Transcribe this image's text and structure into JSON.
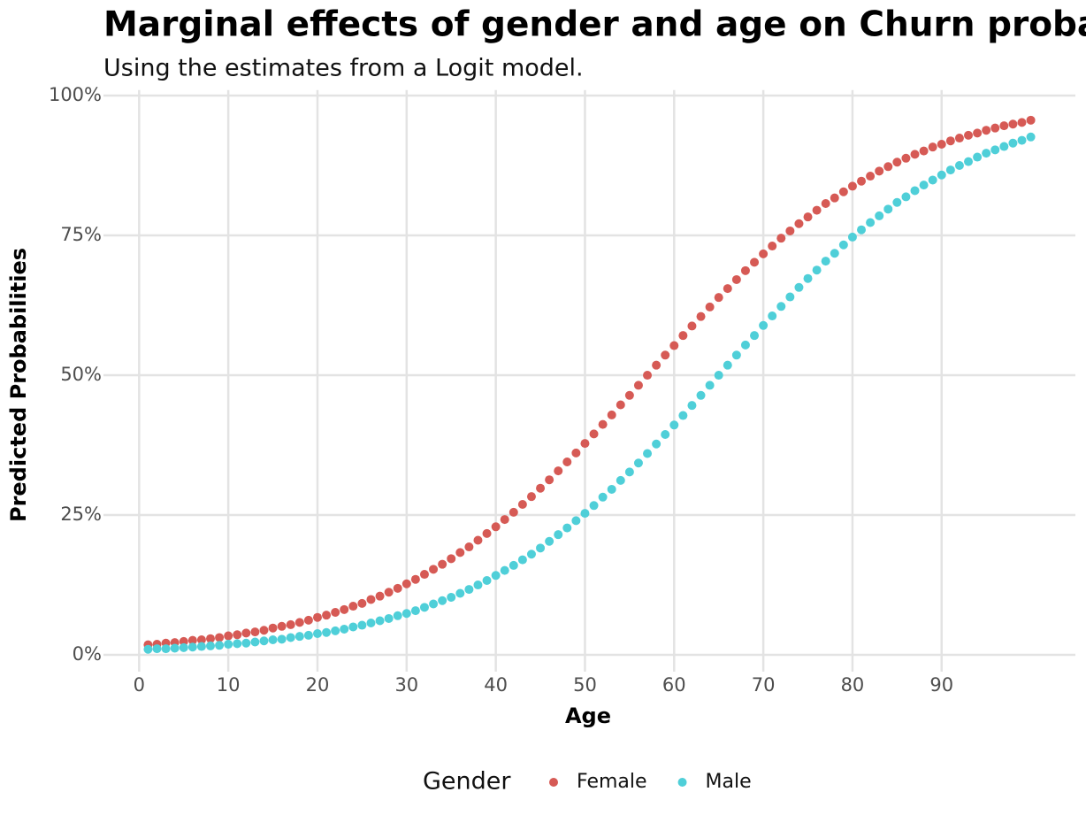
{
  "chart_data": {
    "type": "scatter",
    "title": "Marginal effects of gender and age on Churn probabilities",
    "subtitle": "Using the estimates from a Logit model.",
    "x_label": "Age",
    "y_label": "Predicted Probabilities",
    "legend_title": "Gender",
    "legend_position": "bottom",
    "grid": true,
    "xlim": [
      -4,
      105
    ],
    "ylim": [
      -3,
      101
    ],
    "xticks": [
      0,
      10,
      20,
      30,
      40,
      50,
      60,
      70,
      80,
      90
    ],
    "yticks": [
      {
        "value": 0,
        "label": "0%"
      },
      {
        "value": 25,
        "label": "25%"
      },
      {
        "value": 50,
        "label": "50%"
      },
      {
        "value": 75,
        "label": "75%"
      },
      {
        "value": 100,
        "label": "100%"
      }
    ],
    "x": [
      1,
      2,
      3,
      4,
      5,
      6,
      7,
      8,
      9,
      10,
      11,
      12,
      13,
      14,
      15,
      16,
      17,
      18,
      19,
      20,
      21,
      22,
      23,
      24,
      25,
      26,
      27,
      28,
      29,
      30,
      31,
      32,
      33,
      34,
      35,
      36,
      37,
      38,
      39,
      40,
      41,
      42,
      43,
      44,
      45,
      46,
      47,
      48,
      49,
      50,
      51,
      52,
      53,
      54,
      55,
      56,
      57,
      58,
      59,
      60,
      61,
      62,
      63,
      64,
      65,
      66,
      67,
      68,
      69,
      70,
      71,
      72,
      73,
      74,
      75,
      76,
      77,
      78,
      79,
      80,
      81,
      82,
      83,
      84,
      85,
      86,
      87,
      88,
      89,
      90,
      91,
      92,
      93,
      94,
      95,
      96,
      97,
      98,
      99,
      100
    ],
    "series": [
      {
        "name": "Female",
        "color": "#d65a55",
        "values": [
          1.8,
          1.9,
          2.1,
          2.2,
          2.4,
          2.6,
          2.7,
          2.9,
          3.1,
          3.4,
          3.6,
          3.9,
          4.1,
          4.4,
          4.8,
          5.1,
          5.4,
          5.8,
          6.2,
          6.7,
          7.1,
          7.6,
          8.1,
          8.7,
          9.2,
          9.9,
          10.5,
          11.2,
          11.9,
          12.7,
          13.5,
          14.4,
          15.3,
          16.2,
          17.2,
          18.3,
          19.3,
          20.5,
          21.7,
          22.9,
          24.2,
          25.5,
          26.9,
          28.3,
          29.8,
          31.3,
          32.9,
          34.5,
          36.1,
          37.8,
          39.5,
          41.2,
          42.9,
          44.7,
          46.4,
          48.2,
          50.0,
          51.8,
          53.6,
          55.3,
          57.1,
          58.8,
          60.5,
          62.2,
          63.9,
          65.5,
          67.1,
          68.7,
          70.2,
          71.7,
          73.1,
          74.5,
          75.8,
          77.1,
          78.3,
          79.5,
          80.7,
          81.7,
          82.8,
          83.8,
          84.7,
          85.6,
          86.5,
          87.3,
          88.1,
          88.8,
          89.5,
          90.1,
          90.8,
          91.3,
          91.9,
          92.4,
          92.9,
          93.3,
          93.8,
          94.2,
          94.6,
          94.9,
          95.2,
          95.6
        ]
      },
      {
        "name": "Male",
        "color": "#4fcfd8",
        "values": [
          1.0,
          1.1,
          1.1,
          1.2,
          1.3,
          1.4,
          1.5,
          1.6,
          1.7,
          1.9,
          2.0,
          2.1,
          2.3,
          2.5,
          2.7,
          2.8,
          3.1,
          3.3,
          3.5,
          3.8,
          4.0,
          4.3,
          4.6,
          5.0,
          5.3,
          5.7,
          6.1,
          6.5,
          7.0,
          7.4,
          7.9,
          8.5,
          9.1,
          9.7,
          10.3,
          11.0,
          11.7,
          12.5,
          13.3,
          14.2,
          15.1,
          16.0,
          17.0,
          18.0,
          19.1,
          20.3,
          21.5,
          22.7,
          24.0,
          25.3,
          26.7,
          28.2,
          29.6,
          31.2,
          32.7,
          34.3,
          36.0,
          37.7,
          39.4,
          41.1,
          42.8,
          44.6,
          46.4,
          48.2,
          50.0,
          51.8,
          53.6,
          55.4,
          57.1,
          58.9,
          60.6,
          62.3,
          64.0,
          65.7,
          67.3,
          68.8,
          70.4,
          71.8,
          73.3,
          74.7,
          76.0,
          77.3,
          78.5,
          79.7,
          80.9,
          81.9,
          83.0,
          84.0,
          84.9,
          85.8,
          86.7,
          87.5,
          88.2,
          89.0,
          89.7,
          90.3,
          90.9,
          91.5,
          92.0,
          92.6
        ]
      }
    ]
  }
}
